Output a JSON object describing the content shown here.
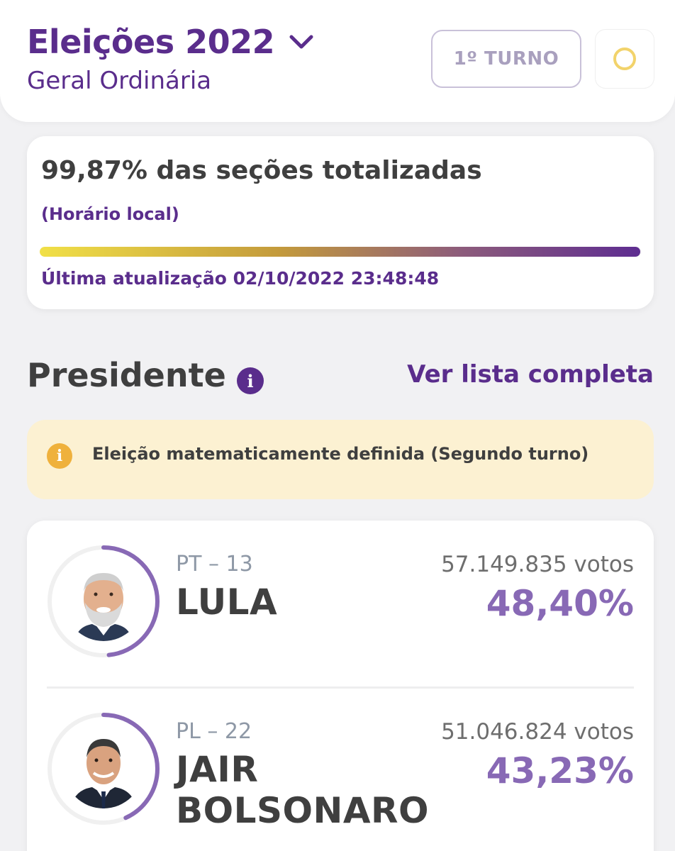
{
  "header": {
    "title": "Eleições 2022",
    "subtitle": "Geral Ordinária",
    "turno_button": "1º TURNO"
  },
  "progress": {
    "title": "99,87% das seções totalizadas",
    "fraction": 0.9987,
    "local_time_label": "(Horário local)",
    "last_update": "Última atualização 02/10/2022 23:48:48"
  },
  "section": {
    "title": "Presidente",
    "info_icon_label": "i",
    "full_list_link": "Ver lista completa"
  },
  "alert": {
    "icon_label": "i",
    "text": "Eleição matematicamente definida (Segundo turno)"
  },
  "candidates": [
    {
      "party": "PT – 13",
      "name": "LULA",
      "votes": "57.149.835 votos",
      "percent": "48,40%",
      "percent_value": 48.4
    },
    {
      "party": "PL – 22",
      "name": "JAIR BOLSONARO",
      "votes": "51.046.824 votos",
      "percent": "43,23%",
      "percent_value": 43.23
    }
  ],
  "colors": {
    "brand_purple": "#5a2d8c",
    "percent_purple": "#8869b5",
    "alert_bg": "#fcf1d2",
    "alert_icon": "#efb13c",
    "status_ring": "#f2d36b"
  },
  "icons": {
    "dropdown": "chevron-down-icon",
    "status": "status-circle-icon",
    "info": "info-icon",
    "alert": "alert-info-icon"
  }
}
